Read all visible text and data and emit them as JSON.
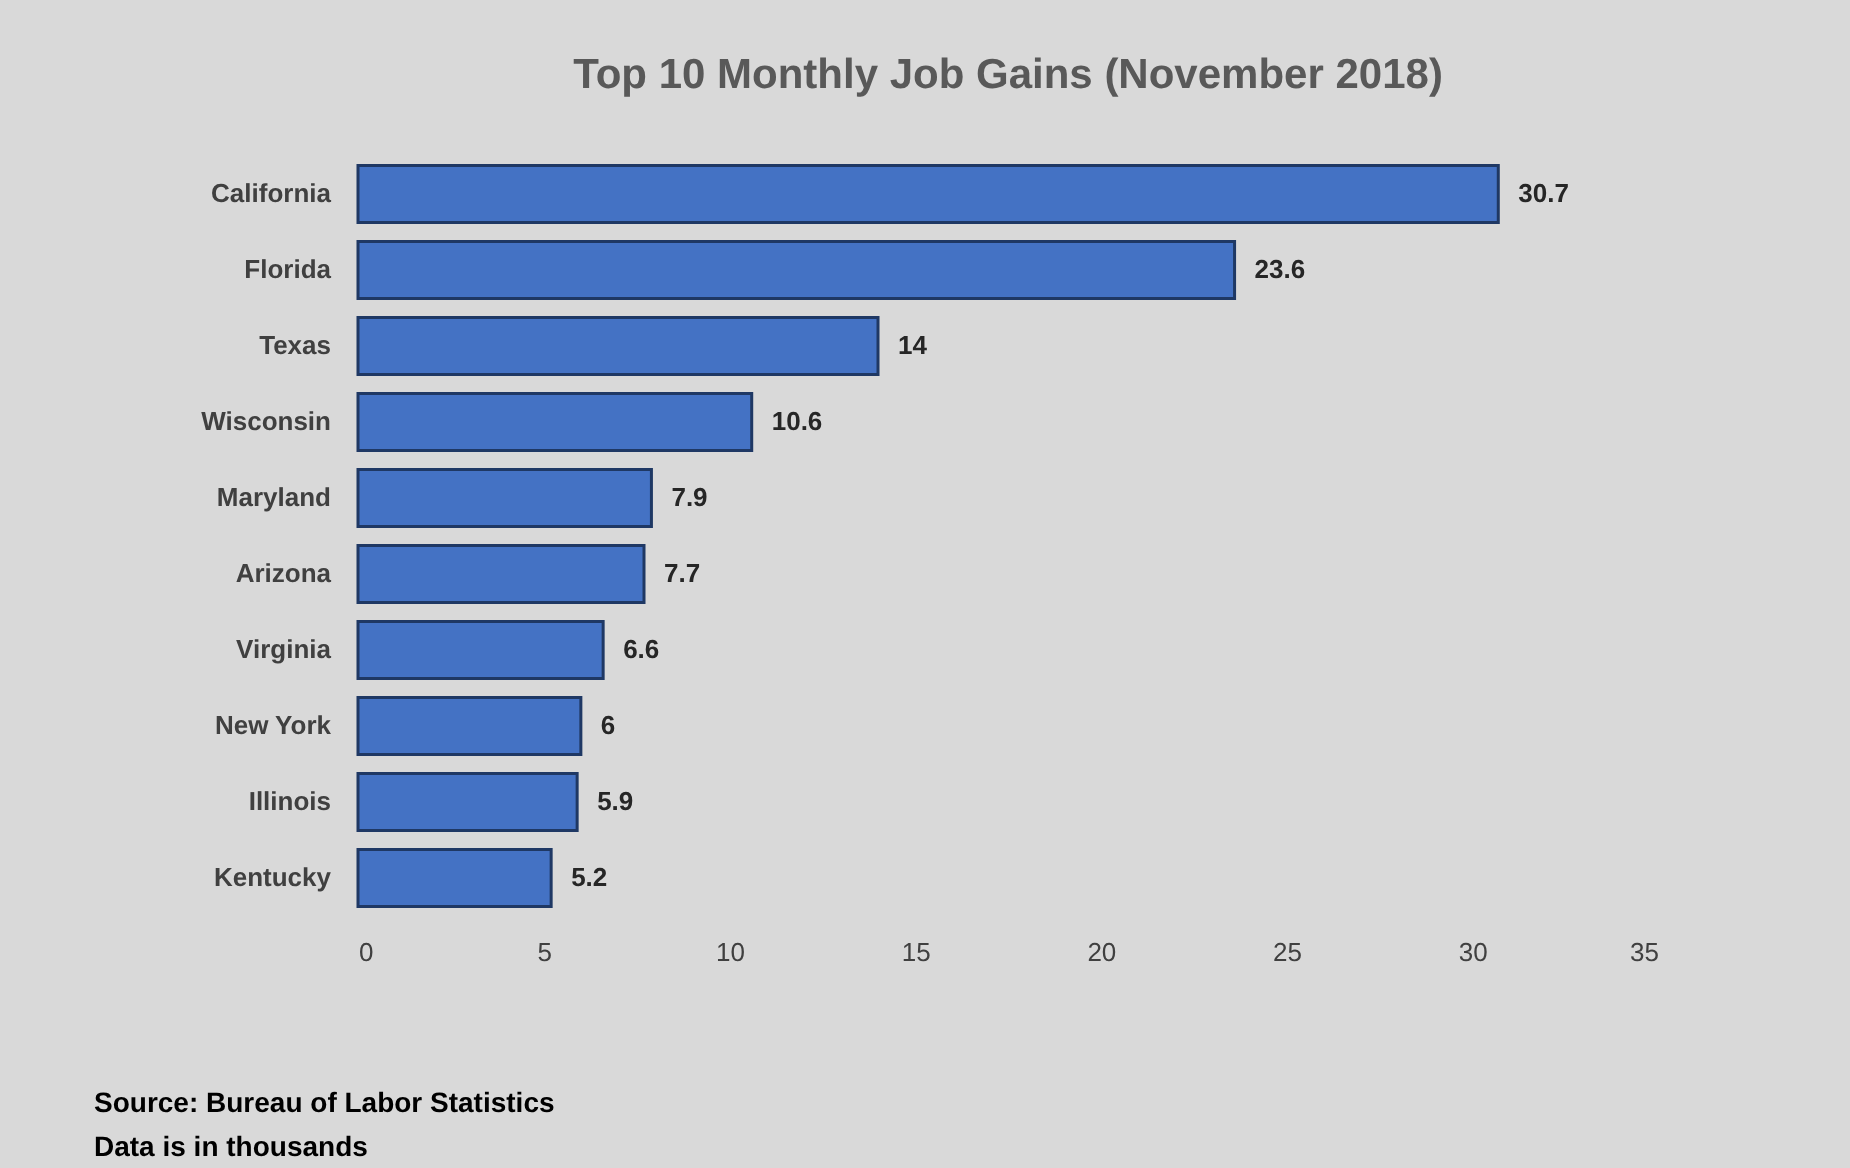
{
  "chart_data": {
    "type": "bar",
    "orientation": "horizontal",
    "title": "Top 10 Monthly Job Gains (November 2018)",
    "categories": [
      "California",
      "Florida",
      "Texas",
      "Wisconsin",
      "Maryland",
      "Arizona",
      "Virginia",
      "New York",
      "Illinois",
      "Kentucky"
    ],
    "values": [
      30.7,
      23.6,
      14,
      10.6,
      7.9,
      7.7,
      6.6,
      6,
      5.9,
      5.2
    ],
    "color": "#4472c4",
    "xlim": [
      0,
      35
    ],
    "xticks": [
      0,
      5,
      10,
      15,
      20,
      25,
      30,
      35
    ],
    "data_labels": true,
    "annotations": [
      "Source: Bureau of Labor Statistics",
      "Data is in thousands"
    ]
  }
}
